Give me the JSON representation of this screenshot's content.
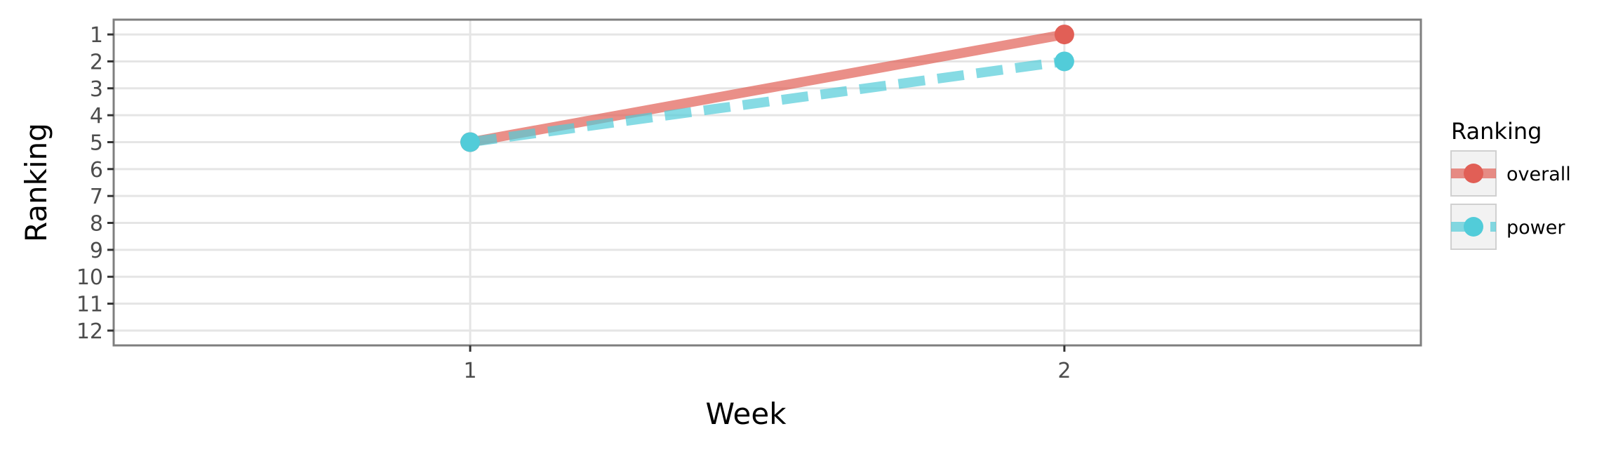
{
  "chart_data": {
    "type": "line",
    "xlabel": "Week",
    "ylabel": "Ranking",
    "x": [
      1,
      2
    ],
    "x_ticks": [
      "1",
      "2"
    ],
    "xlim": [
      0.4,
      2.6
    ],
    "y_ticks": [
      "1",
      "2",
      "3",
      "4",
      "5",
      "6",
      "7",
      "8",
      "9",
      "10",
      "11",
      "12"
    ],
    "ylim": [
      0.45,
      12.55
    ],
    "y_reversed": true,
    "grid": true,
    "legend": {
      "title": "Ranking",
      "placement": "right"
    },
    "series": [
      {
        "name": "overall",
        "values": [
          5,
          1
        ],
        "color": "#e15f56",
        "line_style": "solid"
      },
      {
        "name": "power",
        "values": [
          5,
          2
        ],
        "color": "#52ccd9",
        "line_style": "dashed"
      }
    ]
  }
}
